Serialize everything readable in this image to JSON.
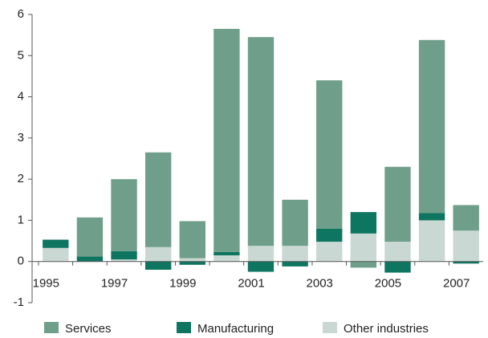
{
  "chart_data": {
    "type": "bar",
    "stacked": true,
    "categories": [
      "1995",
      null,
      "1997",
      null,
      "1999",
      null,
      "2001",
      null,
      "2003",
      null,
      "2005",
      null,
      "2007"
    ],
    "series": [
      {
        "name": "Services",
        "color": "#6f9e8a",
        "values": [
          0,
          0.95,
          1.75,
          2.3,
          0.9,
          5.42,
          5.07,
          1.12,
          3.6,
          -0.15,
          1.82,
          4.2,
          0.62
        ]
      },
      {
        "name": "Manufacturing",
        "color": "#0d7560",
        "values": [
          0.2,
          0.12,
          0.2,
          -0.2,
          -0.08,
          0.08,
          -0.25,
          -0.12,
          0.32,
          0.52,
          -0.27,
          0.18,
          -0.05
        ]
      },
      {
        "name": "Other industries",
        "color": "#c9d8d3",
        "values": [
          0.33,
          0,
          0.05,
          0.35,
          0.08,
          0.15,
          0.38,
          0.38,
          0.48,
          0.68,
          0.48,
          1.0,
          0.75
        ]
      }
    ],
    "ylim": [
      -1,
      6
    ],
    "yticks": [
      -1,
      0,
      1,
      2,
      3,
      4,
      5,
      6
    ],
    "grid": false,
    "legend": "bottom"
  }
}
